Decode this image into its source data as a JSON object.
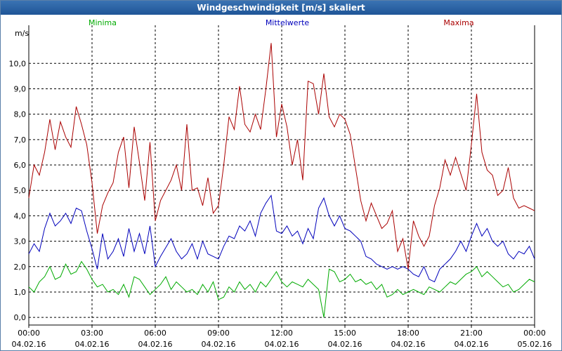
{
  "window": {
    "title": "Windgeschwindigkeit [m/s] skaliert"
  },
  "chart_data": {
    "type": "line",
    "title": "Windgeschwindigkeit [m/s] skaliert",
    "ylabel": "m/s",
    "ylim": [
      -0.3,
      11.5
    ],
    "yticks": [
      0,
      1,
      2,
      3,
      4,
      5,
      6,
      7,
      8,
      9,
      10
    ],
    "ytick_labels": [
      "0,0",
      "1,0",
      "2,0",
      "3,0",
      "4,0",
      "5,0",
      "6,0",
      "7,0",
      "8,0",
      "9,0",
      "10,0"
    ],
    "xticks": [
      {
        "time": "00:00",
        "date": "04.02.16"
      },
      {
        "time": "03:00",
        "date": "04.02.16"
      },
      {
        "time": "06:00",
        "date": "04.02.16"
      },
      {
        "time": "09:00",
        "date": "04.02.16"
      },
      {
        "time": "12:00",
        "date": "04.02.16"
      },
      {
        "time": "15:00",
        "date": "04.02.16"
      },
      {
        "time": "18:00",
        "date": "04.02.16"
      },
      {
        "time": "21:00",
        "date": "04.02.16"
      },
      {
        "time": "00:00",
        "date": "05.02.16"
      }
    ],
    "xlim_hours": [
      0,
      24
    ],
    "grid": true,
    "legend_placement": "top",
    "series": [
      {
        "name": "Minima",
        "color": "#00aa00",
        "points": [
          [
            0,
            1.2
          ],
          [
            0.25,
            1.0
          ],
          [
            0.5,
            1.4
          ],
          [
            0.75,
            1.6
          ],
          [
            1,
            2.0
          ],
          [
            1.25,
            1.5
          ],
          [
            1.5,
            1.6
          ],
          [
            1.75,
            2.1
          ],
          [
            2,
            1.7
          ],
          [
            2.25,
            1.8
          ],
          [
            2.5,
            2.2
          ],
          [
            2.75,
            1.9
          ],
          [
            3,
            1.5
          ],
          [
            3.25,
            1.2
          ],
          [
            3.5,
            1.3
          ],
          [
            3.75,
            1.0
          ],
          [
            4,
            1.1
          ],
          [
            4.25,
            0.9
          ],
          [
            4.5,
            1.3
          ],
          [
            4.75,
            0.8
          ],
          [
            5,
            1.6
          ],
          [
            5.25,
            1.5
          ],
          [
            5.5,
            1.2
          ],
          [
            5.75,
            0.9
          ],
          [
            6,
            1.1
          ],
          [
            6.25,
            1.3
          ],
          [
            6.5,
            1.6
          ],
          [
            6.75,
            1.1
          ],
          [
            7,
            1.4
          ],
          [
            7.25,
            1.2
          ],
          [
            7.5,
            1.0
          ],
          [
            7.75,
            1.1
          ],
          [
            8,
            0.9
          ],
          [
            8.25,
            1.3
          ],
          [
            8.5,
            1.0
          ],
          [
            8.75,
            1.4
          ],
          [
            9,
            0.7
          ],
          [
            9.25,
            0.8
          ],
          [
            9.5,
            1.2
          ],
          [
            9.75,
            1.0
          ],
          [
            10,
            1.4
          ],
          [
            10.25,
            1.1
          ],
          [
            10.5,
            1.3
          ],
          [
            10.75,
            1.0
          ],
          [
            11,
            1.4
          ],
          [
            11.25,
            1.2
          ],
          [
            11.5,
            1.5
          ],
          [
            11.75,
            1.8
          ],
          [
            12,
            1.4
          ],
          [
            12.25,
            1.2
          ],
          [
            12.5,
            1.4
          ],
          [
            12.75,
            1.3
          ],
          [
            13,
            1.2
          ],
          [
            13.25,
            1.5
          ],
          [
            13.5,
            1.3
          ],
          [
            13.75,
            1.1
          ],
          [
            14,
            0.0
          ],
          [
            14.25,
            1.9
          ],
          [
            14.5,
            1.8
          ],
          [
            14.75,
            1.4
          ],
          [
            15,
            1.5
          ],
          [
            15.25,
            1.7
          ],
          [
            15.5,
            1.4
          ],
          [
            15.75,
            1.5
          ],
          [
            16,
            1.3
          ],
          [
            16.25,
            1.4
          ],
          [
            16.5,
            1.1
          ],
          [
            16.75,
            1.3
          ],
          [
            17,
            0.8
          ],
          [
            17.25,
            0.9
          ],
          [
            17.5,
            1.1
          ],
          [
            17.75,
            0.9
          ],
          [
            18,
            1.0
          ],
          [
            18.25,
            1.1
          ],
          [
            18.5,
            1.0
          ],
          [
            18.75,
            0.9
          ],
          [
            19,
            1.2
          ],
          [
            19.25,
            1.1
          ],
          [
            19.5,
            1.0
          ],
          [
            19.75,
            1.2
          ],
          [
            20,
            1.4
          ],
          [
            20.25,
            1.3
          ],
          [
            20.5,
            1.5
          ],
          [
            20.75,
            1.7
          ],
          [
            21,
            1.8
          ],
          [
            21.25,
            2.0
          ],
          [
            21.5,
            1.6
          ],
          [
            21.75,
            1.8
          ],
          [
            22,
            1.6
          ],
          [
            22.25,
            1.4
          ],
          [
            22.5,
            1.2
          ],
          [
            22.75,
            1.3
          ],
          [
            23,
            1.0
          ],
          [
            23.25,
            1.1
          ],
          [
            23.5,
            1.3
          ],
          [
            23.75,
            1.5
          ],
          [
            24,
            1.4
          ]
        ]
      },
      {
        "name": "Mittelwerte",
        "color": "#0000bb",
        "points": [
          [
            0,
            2.5
          ],
          [
            0.25,
            2.9
          ],
          [
            0.5,
            2.6
          ],
          [
            0.75,
            3.5
          ],
          [
            1,
            4.1
          ],
          [
            1.25,
            3.6
          ],
          [
            1.5,
            3.8
          ],
          [
            1.75,
            4.1
          ],
          [
            2,
            3.7
          ],
          [
            2.25,
            4.3
          ],
          [
            2.5,
            4.2
          ],
          [
            2.75,
            3.4
          ],
          [
            3,
            2.7
          ],
          [
            3.25,
            1.9
          ],
          [
            3.5,
            3.3
          ],
          [
            3.75,
            2.3
          ],
          [
            4,
            2.6
          ],
          [
            4.25,
            3.1
          ],
          [
            4.5,
            2.4
          ],
          [
            4.75,
            3.5
          ],
          [
            5,
            2.6
          ],
          [
            5.25,
            3.3
          ],
          [
            5.5,
            2.5
          ],
          [
            5.75,
            3.6
          ],
          [
            6,
            2.0
          ],
          [
            6.25,
            2.4
          ],
          [
            6.75,
            3.1
          ],
          [
            7,
            2.6
          ],
          [
            7.25,
            2.3
          ],
          [
            7.5,
            2.5
          ],
          [
            7.75,
            2.9
          ],
          [
            8,
            2.3
          ],
          [
            8.25,
            3.0
          ],
          [
            8.5,
            2.5
          ],
          [
            8.75,
            2.4
          ],
          [
            9,
            2.3
          ],
          [
            9.25,
            2.8
          ],
          [
            9.5,
            3.2
          ],
          [
            9.75,
            3.1
          ],
          [
            10,
            3.6
          ],
          [
            10.25,
            3.4
          ],
          [
            10.5,
            3.8
          ],
          [
            10.75,
            3.2
          ],
          [
            11,
            4.1
          ],
          [
            11.25,
            4.5
          ],
          [
            11.5,
            4.8
          ],
          [
            11.75,
            3.4
          ],
          [
            12,
            3.3
          ],
          [
            12.25,
            3.6
          ],
          [
            12.5,
            3.2
          ],
          [
            12.75,
            3.4
          ],
          [
            13,
            2.9
          ],
          [
            13.25,
            3.5
          ],
          [
            13.5,
            3.1
          ],
          [
            13.75,
            4.3
          ],
          [
            14,
            4.7
          ],
          [
            14.25,
            4.0
          ],
          [
            14.5,
            3.6
          ],
          [
            14.75,
            4.0
          ],
          [
            15,
            3.5
          ],
          [
            15.25,
            3.4
          ],
          [
            15.5,
            3.2
          ],
          [
            15.75,
            3.0
          ],
          [
            16,
            2.4
          ],
          [
            16.25,
            2.3
          ],
          [
            16.5,
            2.1
          ],
          [
            16.75,
            2.0
          ],
          [
            17,
            1.9
          ],
          [
            17.25,
            2.0
          ],
          [
            17.5,
            1.9
          ],
          [
            17.75,
            2.0
          ],
          [
            18,
            1.9
          ],
          [
            18.25,
            1.7
          ],
          [
            18.5,
            1.6
          ],
          [
            18.75,
            2.0
          ],
          [
            19,
            1.5
          ],
          [
            19.25,
            1.4
          ],
          [
            19.5,
            1.9
          ],
          [
            19.75,
            2.1
          ],
          [
            20,
            2.3
          ],
          [
            20.25,
            2.6
          ],
          [
            20.5,
            3.0
          ],
          [
            20.75,
            2.6
          ],
          [
            21,
            3.2
          ],
          [
            21.25,
            3.7
          ],
          [
            21.5,
            3.2
          ],
          [
            21.75,
            3.5
          ],
          [
            22,
            3.0
          ],
          [
            22.25,
            2.8
          ],
          [
            22.5,
            3.0
          ],
          [
            22.75,
            2.5
          ],
          [
            23,
            2.3
          ],
          [
            23.25,
            2.6
          ],
          [
            23.5,
            2.5
          ],
          [
            23.75,
            2.8
          ],
          [
            24,
            2.3
          ]
        ]
      },
      {
        "name": "Maxima",
        "color": "#aa0000",
        "points": [
          [
            0,
            4.7
          ],
          [
            0.25,
            6.0
          ],
          [
            0.5,
            5.6
          ],
          [
            0.75,
            6.5
          ],
          [
            1,
            7.8
          ],
          [
            1.25,
            6.6
          ],
          [
            1.5,
            7.7
          ],
          [
            1.75,
            7.1
          ],
          [
            2,
            6.7
          ],
          [
            2.25,
            8.3
          ],
          [
            2.5,
            7.6
          ],
          [
            2.75,
            6.8
          ],
          [
            3,
            5.3
          ],
          [
            3.25,
            3.3
          ],
          [
            3.5,
            4.4
          ],
          [
            3.75,
            4.9
          ],
          [
            4,
            5.3
          ],
          [
            4.25,
            6.5
          ],
          [
            4.5,
            7.1
          ],
          [
            4.75,
            5.1
          ],
          [
            5,
            7.5
          ],
          [
            5.25,
            6.1
          ],
          [
            5.5,
            4.6
          ],
          [
            5.75,
            6.9
          ],
          [
            6,
            3.8
          ],
          [
            6.25,
            4.6
          ],
          [
            6.75,
            5.4
          ],
          [
            7,
            6.0
          ],
          [
            7.25,
            5.0
          ],
          [
            7.5,
            7.6
          ],
          [
            7.75,
            5.0
          ],
          [
            8,
            5.1
          ],
          [
            8.25,
            4.4
          ],
          [
            8.5,
            5.5
          ],
          [
            8.75,
            4.1
          ],
          [
            9,
            4.4
          ],
          [
            9.25,
            6.0
          ],
          [
            9.5,
            7.9
          ],
          [
            9.75,
            7.4
          ],
          [
            10,
            9.1
          ],
          [
            10.25,
            7.6
          ],
          [
            10.5,
            7.3
          ],
          [
            10.75,
            8.0
          ],
          [
            11,
            7.4
          ],
          [
            11.25,
            9.0
          ],
          [
            11.5,
            10.8
          ],
          [
            11.75,
            7.1
          ],
          [
            12,
            8.4
          ],
          [
            12.25,
            7.5
          ],
          [
            12.5,
            6.0
          ],
          [
            12.75,
            7.0
          ],
          [
            13,
            5.4
          ],
          [
            13.25,
            9.3
          ],
          [
            13.5,
            9.2
          ],
          [
            13.75,
            8.0
          ],
          [
            14,
            9.6
          ],
          [
            14.25,
            7.9
          ],
          [
            14.5,
            7.5
          ],
          [
            14.75,
            8.0
          ],
          [
            15,
            7.8
          ],
          [
            15.25,
            7.2
          ],
          [
            15.5,
            5.9
          ],
          [
            15.75,
            4.6
          ],
          [
            16,
            3.8
          ],
          [
            16.25,
            4.5
          ],
          [
            16.5,
            4.0
          ],
          [
            16.75,
            3.5
          ],
          [
            17,
            3.7
          ],
          [
            17.25,
            4.2
          ],
          [
            17.5,
            2.6
          ],
          [
            17.75,
            3.1
          ],
          [
            18,
            1.9
          ],
          [
            18.25,
            3.8
          ],
          [
            18.5,
            3.2
          ],
          [
            18.75,
            2.8
          ],
          [
            19,
            3.2
          ],
          [
            19.25,
            4.4
          ],
          [
            19.5,
            5.1
          ],
          [
            19.75,
            6.2
          ],
          [
            20,
            5.6
          ],
          [
            20.25,
            6.3
          ],
          [
            20.75,
            5.0
          ],
          [
            21,
            6.8
          ],
          [
            21.25,
            8.8
          ],
          [
            21.5,
            6.5
          ],
          [
            21.75,
            5.8
          ],
          [
            22,
            5.6
          ],
          [
            22.25,
            4.8
          ],
          [
            22.5,
            5.0
          ],
          [
            22.75,
            5.9
          ],
          [
            23,
            4.7
          ],
          [
            23.25,
            4.3
          ],
          [
            23.5,
            4.4
          ],
          [
            23.75,
            4.3
          ],
          [
            24,
            4.2
          ]
        ]
      }
    ]
  }
}
